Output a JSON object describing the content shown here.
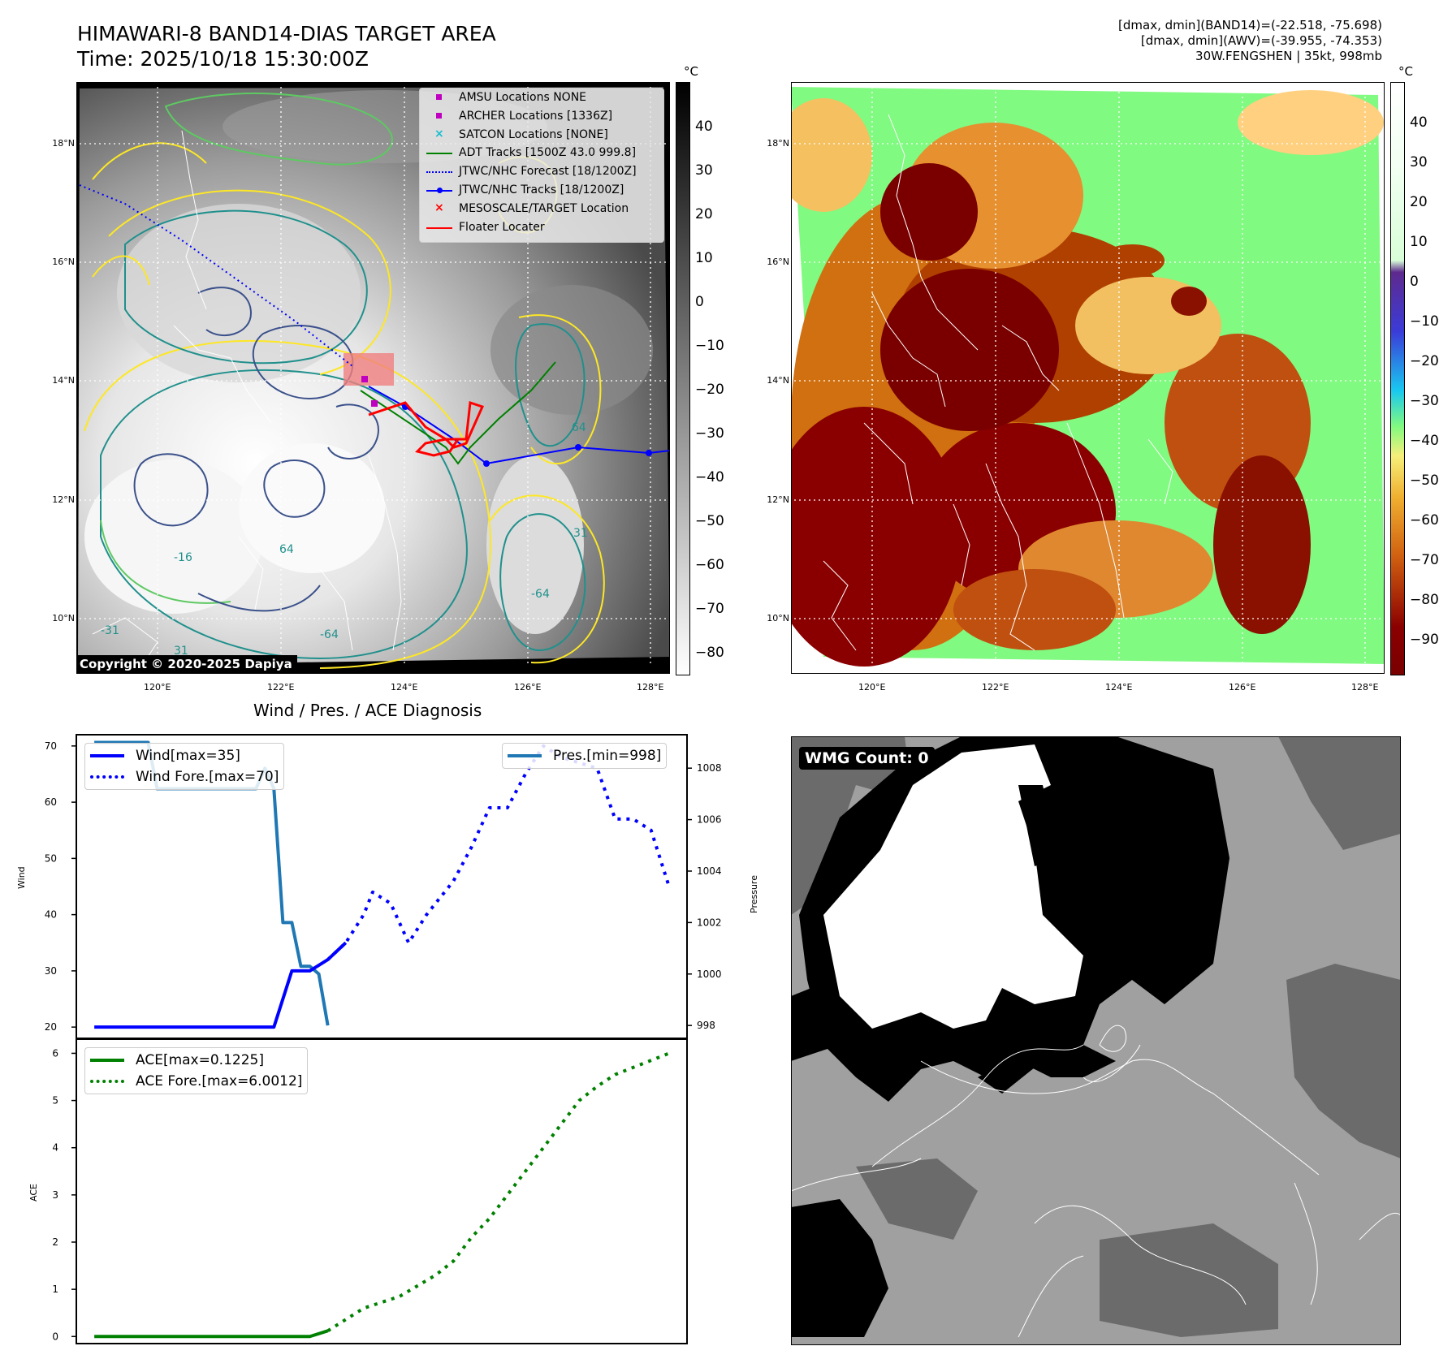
{
  "header": {
    "title_line1": "HIMAWARI-8 BAND14-DIAS TARGET AREA",
    "title_line2": "Time: 2025/10/18 15:30:00Z",
    "right_line1": "[dmax, dmin](BAND14)=(-22.518, -75.698)",
    "right_line2": "[dmax, dmin](AWV)=(-39.955, -74.353)",
    "right_line3": "30W.FENGSHEN | 35kt, 998mb"
  },
  "map_axes": {
    "lat_labels": [
      "18°N",
      "16°N",
      "14°N",
      "12°N",
      "10°N"
    ],
    "lon_labels": [
      "120°E",
      "122°E",
      "124°E",
      "126°E",
      "128°E"
    ]
  },
  "panel_ir": {
    "unit": "°C",
    "colorbar_ticks": [
      "40",
      "30",
      "20",
      "10",
      "0",
      "−10",
      "−20",
      "−30",
      "−40",
      "−50",
      "−60",
      "−70",
      "−80"
    ],
    "copyright": "Copyright © 2020-2025 Dapiya",
    "contour_labels": [
      "64",
      "31",
      "31",
      "64",
      "-64",
      "-31",
      "-16",
      "-64"
    ],
    "legend": [
      {
        "label": "AMSU Locations NONE",
        "marker": "square",
        "color": "#c000c0"
      },
      {
        "label": "ARCHER Locations [1336Z]",
        "marker": "square",
        "color": "#c000c0"
      },
      {
        "label": "SATCON Locations [NONE]",
        "marker": "x",
        "color": "#17becf"
      },
      {
        "label": "ADT Tracks [1500Z 43.0 999.8]",
        "marker": "line",
        "color": "#008000"
      },
      {
        "label": "JTWC/NHC Forecast [18/1200Z]",
        "marker": "dotted",
        "color": "#0000ff"
      },
      {
        "label": "JTWC/NHC Tracks [18/1200Z]",
        "marker": "line-dot",
        "color": "#0000ff"
      },
      {
        "label": "MESOSCALE/TARGET Location",
        "marker": "x",
        "color": "#ff0000"
      },
      {
        "label": "Floater Locater",
        "marker": "line",
        "color": "#ff0000"
      }
    ]
  },
  "panel_awv": {
    "unit": "°C",
    "colorbar_ticks": [
      "40",
      "30",
      "20",
      "10",
      "0",
      "−10",
      "−20",
      "−30",
      "−40",
      "−50",
      "−60",
      "−70",
      "−80",
      "−90"
    ]
  },
  "panel_wmg": {
    "badge": "WMG Count: 0"
  },
  "chart_data": [
    {
      "type": "line",
      "title": "Wind / Pres. / ACE Diagnosis",
      "ylabel": "Wind",
      "y2label": "Pressure",
      "ylim": [
        18,
        72
      ],
      "y2lim": [
        997.5,
        1009.3
      ],
      "yticks": [
        20,
        30,
        40,
        50,
        60,
        70
      ],
      "y2ticks": [
        998,
        1000,
        1002,
        1004,
        1006,
        1008
      ],
      "series": [
        {
          "name": "Wind[max=35]",
          "axis": "left",
          "color": "#0000ff",
          "style": "solid",
          "x": [
            0,
            20,
            22,
            24,
            26,
            28
          ],
          "values": [
            20,
            20,
            30,
            30,
            32,
            35
          ]
        },
        {
          "name": "Wind Fore.[max=70]",
          "axis": "left",
          "color": "#0000ff",
          "style": "dotted",
          "x": [
            26,
            28,
            30,
            31,
            33,
            35,
            37,
            40,
            42,
            44,
            46,
            48,
            50,
            52,
            54,
            56,
            58,
            60,
            62,
            64
          ],
          "values": [
            32,
            35,
            40,
            44,
            42,
            35,
            40,
            46,
            52,
            59,
            59,
            65,
            70,
            68,
            67,
            66,
            57,
            57,
            55,
            45
          ]
        },
        {
          "name": "Pres.[min=998]",
          "axis": "right",
          "color": "#1f77b4",
          "style": "solid",
          "x": [
            0,
            6,
            7,
            12,
            18,
            19,
            20,
            21,
            22,
            23,
            24,
            25,
            26
          ],
          "values": [
            1009,
            1009,
            1007.2,
            1007.2,
            1007.2,
            1008,
            1007.2,
            1002,
            1002,
            1000.3,
            1000.3,
            1000,
            998
          ]
        }
      ]
    },
    {
      "type": "line",
      "ylabel": "ACE",
      "ylim": [
        -0.15,
        6.3
      ],
      "yticks": [
        0,
        1,
        2,
        3,
        4,
        5,
        6
      ],
      "series": [
        {
          "name": "ACE[max=0.1225]",
          "color": "#008000",
          "style": "solid",
          "x": [
            0,
            12,
            20,
            24,
            26
          ],
          "values": [
            0,
            0,
            0,
            0,
            0.12
          ]
        },
        {
          "name": "ACE Fore.[max=6.0012]",
          "color": "#008000",
          "style": "dotted",
          "x": [
            26,
            30,
            34,
            38,
            40,
            42,
            44,
            46,
            48,
            50,
            52,
            54,
            56,
            58,
            60,
            62,
            64
          ],
          "values": [
            0.12,
            0.6,
            0.85,
            1.3,
            1.6,
            2.1,
            2.5,
            3.0,
            3.5,
            4.0,
            4.5,
            5.0,
            5.3,
            5.55,
            5.7,
            5.85,
            6.0
          ]
        }
      ]
    }
  ]
}
